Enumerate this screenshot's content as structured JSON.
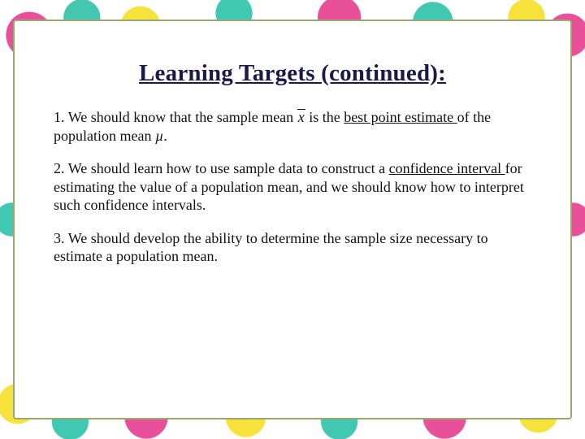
{
  "panel": {
    "border_color": "#9aa972",
    "background_color": "#ffffff"
  },
  "title": {
    "text": "Learning Targets (continued):",
    "color": "#1a1a4a",
    "fontsize": 29,
    "weight": "bold",
    "underline": true
  },
  "body": {
    "color": "#111111",
    "fontsize": 18
  },
  "items": [
    {
      "num": "1.",
      "pre": "We should know that the sample mean ",
      "sym": "x̄",
      "mid": " is the ",
      "u": "best point estimate ",
      "post_a": "of the population mean ",
      "mu": "µ",
      "post_b": "."
    },
    {
      "num": "2.",
      "pre": "We should learn how to use sample data to construct a ",
      "u": "confidence interval ",
      "post": "for estimating the value of a population mean, and we should know how to interpret such confidence intervals."
    },
    {
      "num": "3.",
      "text": "We should develop the ability to determine the sample size necessary to estimate a population mean."
    }
  ]
}
